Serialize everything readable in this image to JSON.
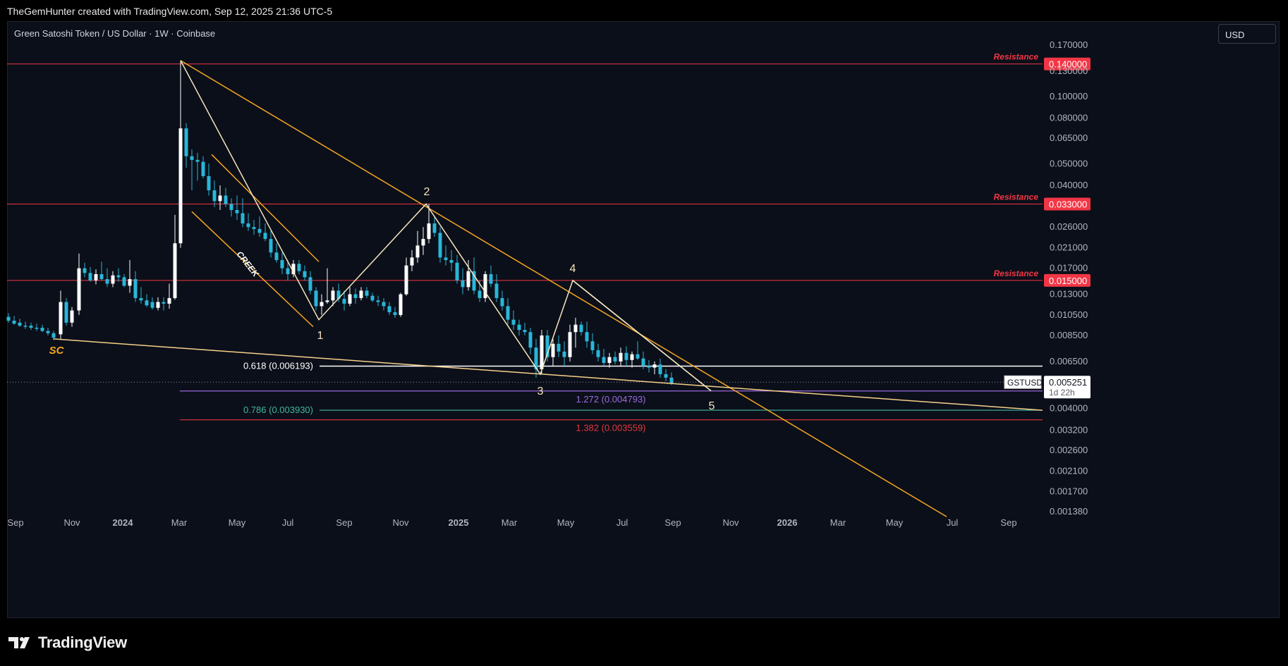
{
  "header": {
    "attribution": "TheGemHunter created with TradingView.com, Sep 12, 2025 21:36 UTC-5"
  },
  "chart": {
    "symbol_title": "Green Satoshi Token / US Dollar · 1W · Coinbase",
    "currency": "USD",
    "brand": "TradingView"
  },
  "chart_data": {
    "type": "candlestick",
    "y_scale": "log",
    "ylim": [
      0.00138,
      0.17
    ],
    "y_ticks": [
      "0.170000",
      "0.130000",
      "0.100000",
      "0.080000",
      "0.065000",
      "0.050000",
      "0.040000",
      "0.026000",
      "0.021000",
      "0.017000",
      "0.013000",
      "0.010500",
      "0.008500",
      "0.006500",
      "0.004000",
      "0.003200",
      "0.002600",
      "0.002100",
      "0.001700",
      "0.001380"
    ],
    "x_ticks": [
      "Sep",
      "Nov",
      "2024",
      "Mar",
      "May",
      "Jul",
      "Sep",
      "Nov",
      "2025",
      "Mar",
      "May",
      "Jul",
      "Sep",
      "Nov",
      "2026",
      "Mar",
      "May",
      "Jul",
      "Sep"
    ],
    "current_price": {
      "symbol": "GSTUSD",
      "value": "0.005251",
      "countdown": "1d 22h"
    },
    "resistance_levels": [
      {
        "label": "Resistance",
        "price": "0.140000",
        "value": 0.14
      },
      {
        "label": "Resistance",
        "price": "0.033000",
        "value": 0.033
      },
      {
        "label": "Resistance",
        "price": "0.015000",
        "value": 0.015
      }
    ],
    "fib_levels": [
      {
        "label": "0.618 (0.006193)",
        "value": 0.006193,
        "color": "#ffffff"
      },
      {
        "label": "1.272 (0.004793)",
        "value": 0.004793,
        "color": "#9c6ade"
      },
      {
        "label": "0.786 (0.003930)",
        "value": 0.00393,
        "color": "#3fb8a0"
      },
      {
        "label": "1.382 (0.003559)",
        "value": 0.003559,
        "color": "#e0393e"
      }
    ],
    "annotations": [
      "SC",
      "CREEK",
      "1",
      "2",
      "3",
      "4",
      "5"
    ],
    "colors": {
      "up": "#ffffff",
      "down": "#29b6d8",
      "resistance": "#f23645",
      "trend": "#f5a623",
      "wave": "#f5e6c0"
    }
  }
}
